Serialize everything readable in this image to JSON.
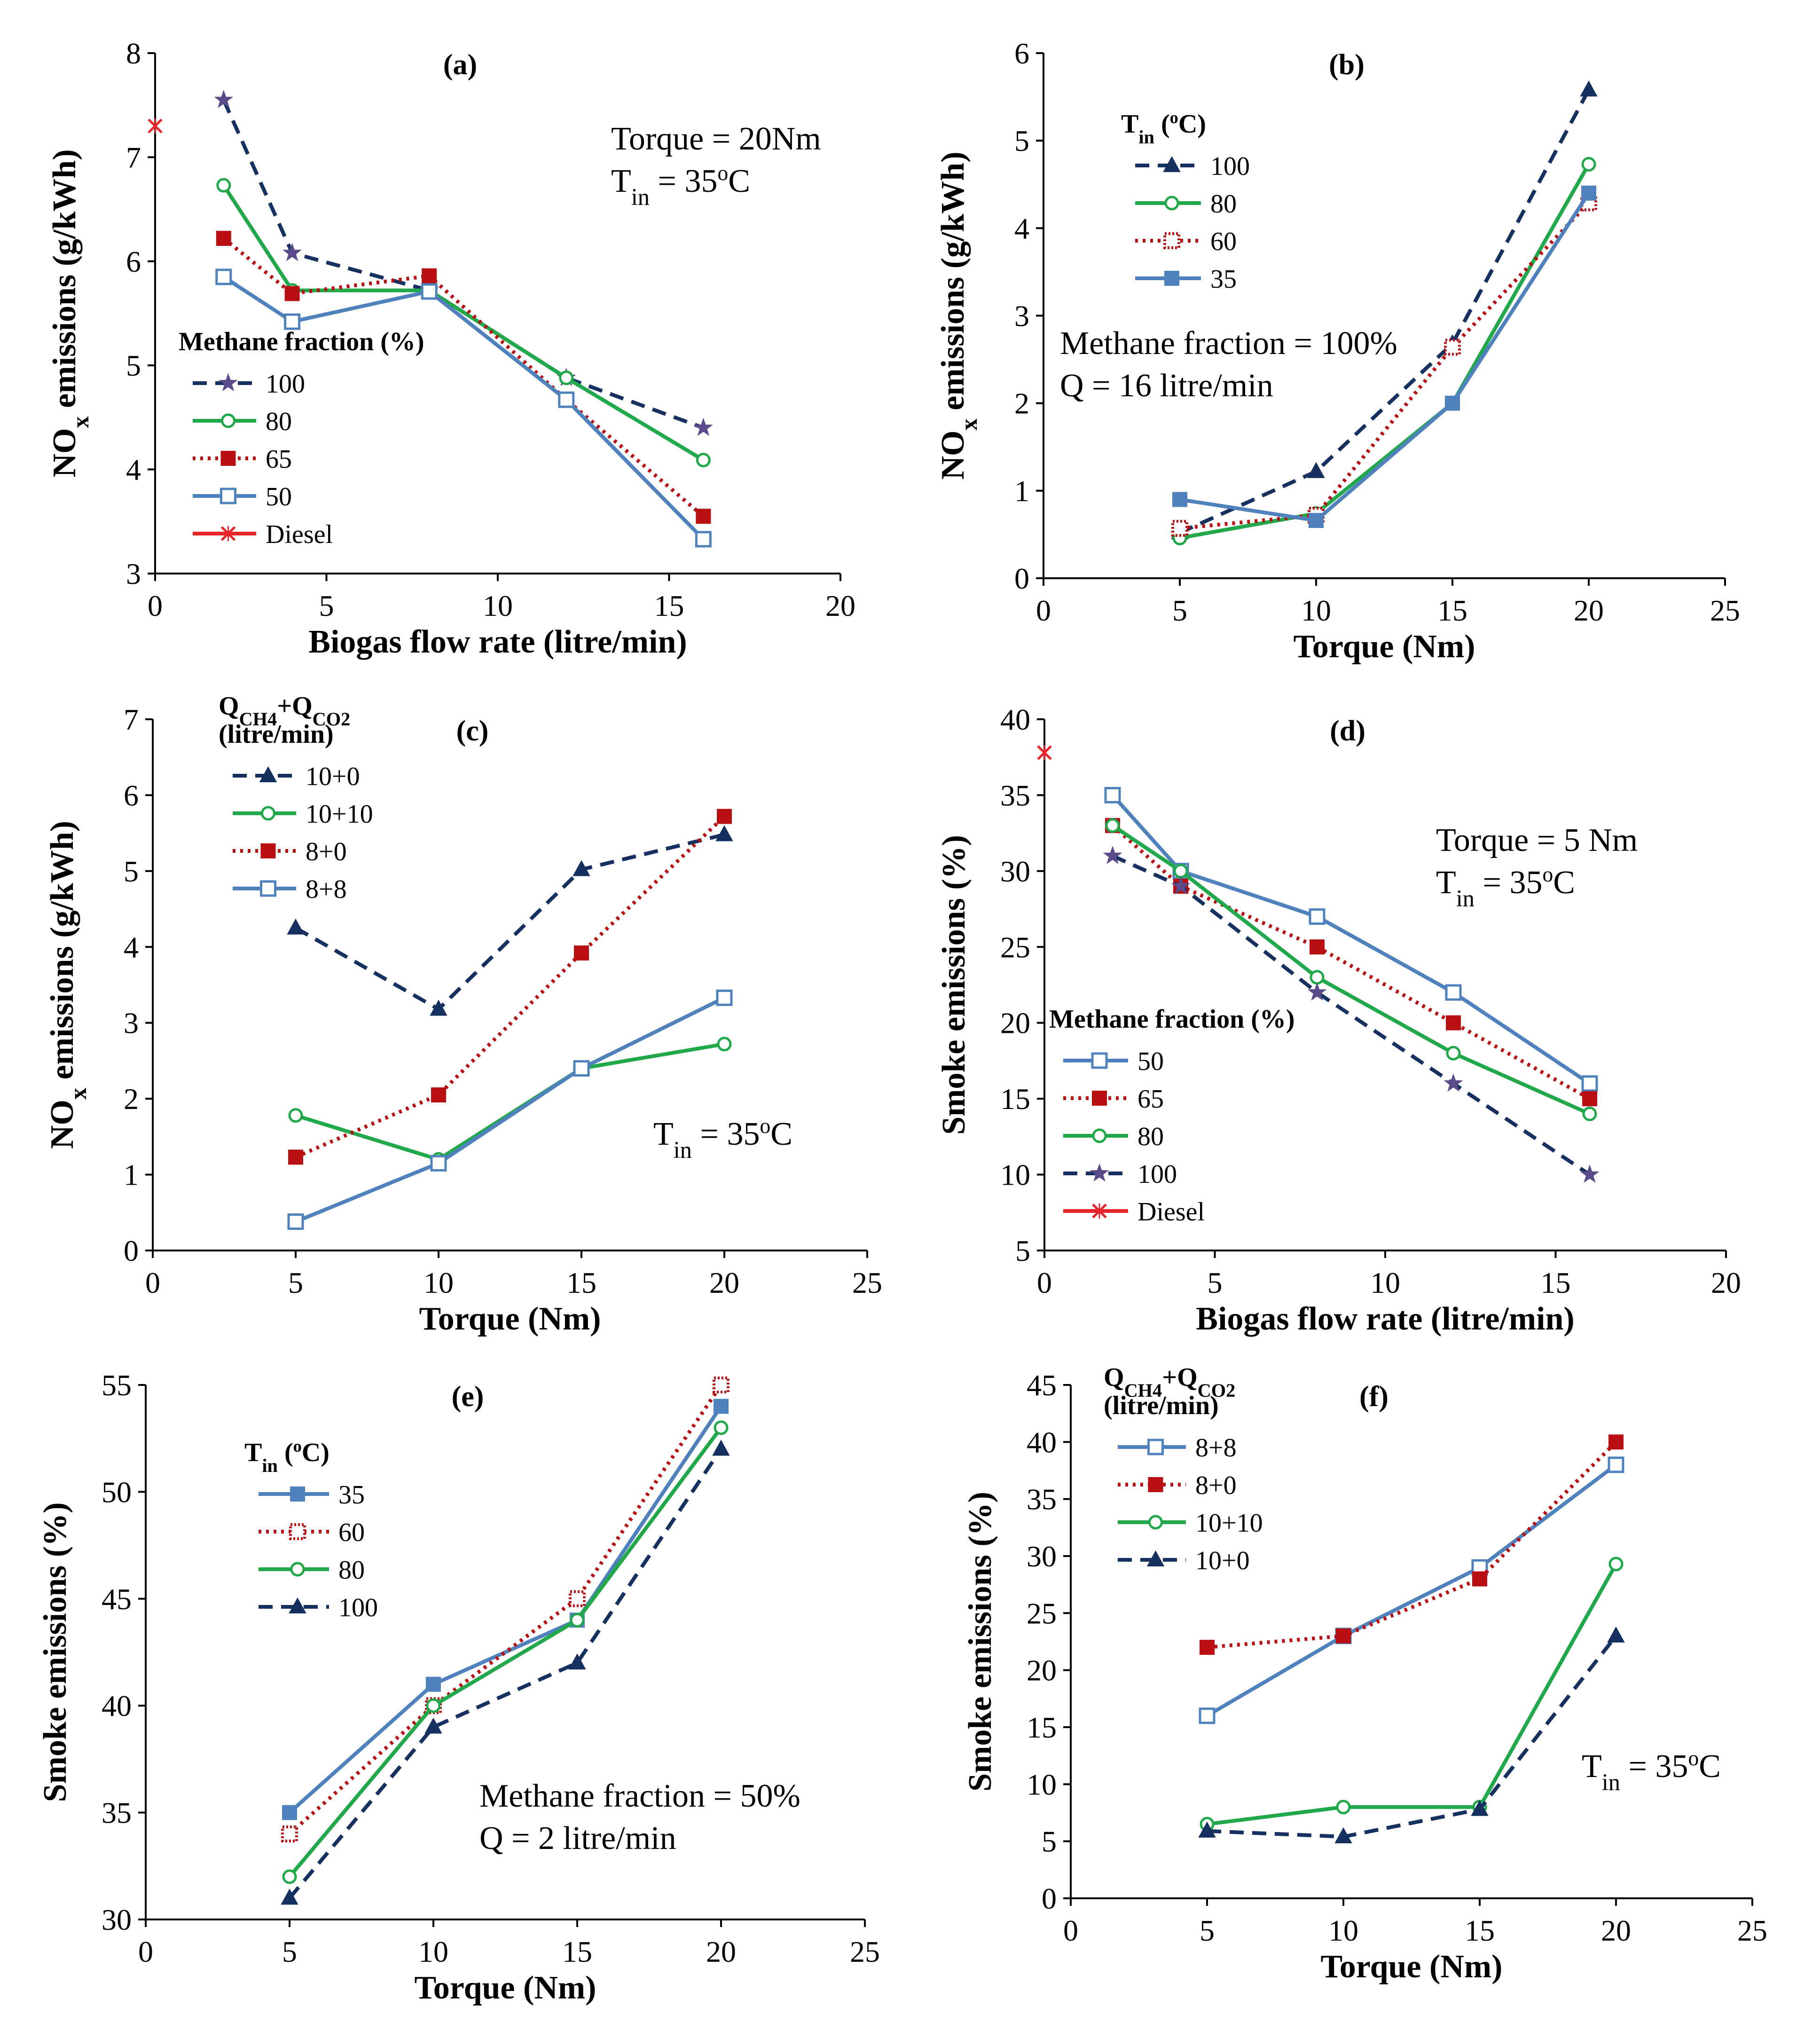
{
  "colors": {
    "navy": "#16305f",
    "green": "#21a84a",
    "red": "#b80f12",
    "blue": "#4f81bd",
    "purple": "#5b4b8a",
    "diesel": "#e8252a"
  },
  "chart_data": [
    {
      "id": "a",
      "type": "line",
      "label": "(a)",
      "xlabel": "Biogas flow rate (litre/min)",
      "ylabel": {
        "base": "NO",
        "sub": "x",
        "rest": " emissions (g/kWh)"
      },
      "xlim": [
        0,
        20
      ],
      "ylim": [
        3,
        8
      ],
      "xticks": [
        0,
        5,
        10,
        15,
        20
      ],
      "yticks": [
        3,
        4,
        5,
        6,
        7,
        8
      ],
      "annotations": [
        {
          "line": 1,
          "parts": [
            {
              "t": "Torque = 20Nm"
            }
          ]
        },
        {
          "line": 2,
          "parts": [
            {
              "t": "T"
            },
            {
              "t": "in",
              "sub": true
            },
            {
              "t": " = 35"
            },
            {
              "t": "o",
              "sup": true
            },
            {
              "t": "C"
            }
          ]
        }
      ],
      "legend_title": {
        "parts": [
          {
            "t": "Methane fraction (%)"
          }
        ]
      },
      "series": [
        {
          "name": "100",
          "style": "dash",
          "color": "navy",
          "marker": "star",
          "x": [
            2,
            4,
            8,
            12,
            16
          ],
          "y": [
            7.55,
            6.08,
            5.72,
            4.88,
            4.4
          ]
        },
        {
          "name": "80",
          "style": "solid",
          "color": "green",
          "marker": "circle",
          "x": [
            2,
            4,
            8,
            12,
            16
          ],
          "y": [
            6.73,
            5.72,
            5.72,
            4.88,
            4.09
          ]
        },
        {
          "name": "65",
          "style": "dot",
          "color": "red",
          "marker": "square-filled",
          "x": [
            2,
            4,
            8,
            12,
            16
          ],
          "y": [
            6.22,
            5.69,
            5.86,
            4.67,
            3.55
          ]
        },
        {
          "name": "50",
          "style": "solid",
          "color": "blue",
          "marker": "square-open",
          "x": [
            2,
            4,
            8,
            12,
            16
          ],
          "y": [
            5.85,
            5.42,
            5.71,
            4.67,
            3.33
          ]
        },
        {
          "name": "Diesel",
          "style": "solid",
          "color": "diesel",
          "marker": "x",
          "x": [
            0
          ],
          "y": [
            7.3
          ]
        }
      ]
    },
    {
      "id": "b",
      "type": "line",
      "label": "(b)",
      "xlabel": "Torque (Nm)",
      "ylabel": {
        "base": "NO",
        "sub": "x",
        "rest": " emissions (g/kWh)"
      },
      "xlim": [
        0,
        25
      ],
      "ylim": [
        0,
        6
      ],
      "xticks": [
        0,
        5,
        10,
        15,
        20,
        25
      ],
      "yticks": [
        0,
        1,
        2,
        3,
        4,
        5,
        6
      ],
      "annotations": [
        {
          "line": 1,
          "parts": [
            {
              "t": "Methane fraction = 100%"
            }
          ]
        },
        {
          "line": 2,
          "parts": [
            {
              "t": "Q = 16 litre/min"
            }
          ]
        }
      ],
      "legend_title": {
        "parts": [
          {
            "t": "T"
          },
          {
            "t": "in",
            "sub": true
          },
          {
            "t": " ("
          },
          {
            "t": "o",
            "sup": true
          },
          {
            "t": "C)"
          }
        ]
      },
      "series": [
        {
          "name": "100",
          "style": "dash",
          "color": "navy",
          "marker": "triangle",
          "x": [
            5,
            10,
            15,
            20
          ],
          "y": [
            0.52,
            1.22,
            2.68,
            5.58
          ]
        },
        {
          "name": "80",
          "style": "solid",
          "color": "green",
          "marker": "circle",
          "x": [
            5,
            10,
            15,
            20
          ],
          "y": [
            0.46,
            0.74,
            2.0,
            4.73
          ]
        },
        {
          "name": "60",
          "style": "dot",
          "color": "red",
          "marker": "square-dotted",
          "x": [
            5,
            10,
            15,
            20
          ],
          "y": [
            0.57,
            0.72,
            2.64,
            4.29
          ]
        },
        {
          "name": "35",
          "style": "solid",
          "color": "blue",
          "marker": "square-filled",
          "x": [
            5,
            10,
            15,
            20
          ],
          "y": [
            0.9,
            0.66,
            2.0,
            4.4
          ]
        }
      ]
    },
    {
      "id": "c",
      "type": "line",
      "label": "(c)",
      "xlabel": "Torque (Nm)",
      "ylabel": {
        "base": "NO",
        "sub": "x",
        "rest": " emissions (g/kWh)"
      },
      "xlim": [
        0,
        25
      ],
      "ylim": [
        0,
        7
      ],
      "xticks": [
        0,
        5,
        10,
        15,
        20,
        25
      ],
      "yticks": [
        0,
        1,
        2,
        3,
        4,
        5,
        6,
        7
      ],
      "annotations": [
        {
          "line": 1,
          "parts": [
            {
              "t": "T"
            },
            {
              "t": "in",
              "sub": true
            },
            {
              "t": " = 35"
            },
            {
              "t": "o",
              "sup": true
            },
            {
              "t": "C"
            }
          ]
        }
      ],
      "legend_title": {
        "parts": [
          {
            "t": "Q"
          },
          {
            "t": "CH4",
            "sub": true
          },
          {
            "t": "+Q"
          },
          {
            "t": "CO2",
            "sub": true
          }
        ],
        "line2": "(litre/min)"
      },
      "series": [
        {
          "name": "10+0",
          "style": "dash",
          "color": "navy",
          "marker": "triangle",
          "x": [
            5,
            10,
            15,
            20
          ],
          "y": [
            4.25,
            3.18,
            5.02,
            5.48
          ]
        },
        {
          "name": "10+10",
          "style": "solid",
          "color": "green",
          "marker": "circle",
          "x": [
            5,
            10,
            15,
            20
          ],
          "y": [
            1.78,
            1.2,
            2.4,
            2.72
          ]
        },
        {
          "name": "8+0",
          "style": "dot",
          "color": "red",
          "marker": "square-filled",
          "x": [
            5,
            10,
            15,
            20
          ],
          "y": [
            1.23,
            2.05,
            3.92,
            5.72
          ]
        },
        {
          "name": "8+8",
          "style": "solid",
          "color": "blue",
          "marker": "square-open",
          "x": [
            5,
            10,
            15,
            20
          ],
          "y": [
            0.38,
            1.15,
            2.4,
            3.33
          ]
        }
      ]
    },
    {
      "id": "d",
      "type": "line",
      "label": "(d)",
      "xlabel": "Biogas flow rate (litre/min)",
      "ylabel": {
        "base": "Smoke emissions (%)"
      },
      "xlim": [
        0,
        20
      ],
      "ylim": [
        5,
        40
      ],
      "xticks": [
        0,
        5,
        10,
        15,
        20
      ],
      "yticks": [
        5,
        10,
        15,
        20,
        25,
        30,
        35,
        40
      ],
      "annotations": [
        {
          "line": 1,
          "parts": [
            {
              "t": "Torque = 5 Nm"
            }
          ]
        },
        {
          "line": 2,
          "parts": [
            {
              "t": "T"
            },
            {
              "t": "in",
              "sub": true
            },
            {
              "t": " = 35"
            },
            {
              "t": "o",
              "sup": true
            },
            {
              "t": "C"
            }
          ]
        }
      ],
      "legend_title": {
        "parts": [
          {
            "t": "Methane fraction (%)"
          }
        ]
      },
      "series": [
        {
          "name": "50",
          "style": "solid",
          "color": "blue",
          "marker": "square-open",
          "x": [
            2,
            4,
            8,
            12,
            16
          ],
          "y": [
            35,
            30,
            27,
            22,
            16
          ]
        },
        {
          "name": "65",
          "style": "dot",
          "color": "red",
          "marker": "square-filled",
          "x": [
            2,
            4,
            8,
            12,
            16
          ],
          "y": [
            33,
            29,
            25,
            20,
            15
          ]
        },
        {
          "name": "80",
          "style": "solid",
          "color": "green",
          "marker": "circle",
          "x": [
            2,
            4,
            8,
            12,
            16
          ],
          "y": [
            33,
            30,
            23,
            18,
            14
          ]
        },
        {
          "name": "100",
          "style": "dash",
          "color": "navy",
          "marker": "star",
          "x": [
            2,
            4,
            8,
            12,
            16
          ],
          "y": [
            31,
            29,
            22,
            16,
            10
          ]
        },
        {
          "name": "Diesel",
          "style": "solid",
          "color": "diesel",
          "marker": "x",
          "x": [
            0
          ],
          "y": [
            37.8
          ]
        }
      ]
    },
    {
      "id": "e",
      "type": "line",
      "label": "(e)",
      "xlabel": "Torque (Nm)",
      "ylabel": {
        "base": "Smoke emissions (%)"
      },
      "xlim": [
        0,
        25
      ],
      "ylim": [
        30,
        55
      ],
      "xticks": [
        0,
        5,
        10,
        15,
        20,
        25
      ],
      "yticks": [
        30,
        35,
        40,
        45,
        50,
        55
      ],
      "annotations": [
        {
          "line": 1,
          "parts": [
            {
              "t": "Methane fraction = 50%"
            }
          ]
        },
        {
          "line": 2,
          "parts": [
            {
              "t": "Q = 2 litre/min"
            }
          ]
        }
      ],
      "legend_title": {
        "parts": [
          {
            "t": "T"
          },
          {
            "t": "in",
            "sub": true
          },
          {
            "t": " ("
          },
          {
            "t": "o",
            "sup": true
          },
          {
            "t": "C)"
          }
        ]
      },
      "series": [
        {
          "name": "35",
          "style": "solid",
          "color": "blue",
          "marker": "square-filled",
          "x": [
            5,
            10,
            15,
            20
          ],
          "y": [
            35,
            41,
            44,
            54
          ]
        },
        {
          "name": "60",
          "style": "dot",
          "color": "red",
          "marker": "square-dotted",
          "x": [
            5,
            10,
            15,
            20
          ],
          "y": [
            34,
            40,
            45,
            55
          ]
        },
        {
          "name": "80",
          "style": "solid",
          "color": "green",
          "marker": "circle",
          "x": [
            5,
            10,
            15,
            20
          ],
          "y": [
            32,
            40,
            44,
            53
          ]
        },
        {
          "name": "100",
          "style": "dash",
          "color": "navy",
          "marker": "triangle",
          "x": [
            5,
            10,
            15,
            20
          ],
          "y": [
            31,
            39,
            42,
            52
          ]
        }
      ]
    },
    {
      "id": "f",
      "type": "line",
      "label": "(f)",
      "xlabel": "Torque (Nm)",
      "ylabel": {
        "base": "Smoke emissions (%)"
      },
      "xlim": [
        0,
        25
      ],
      "ylim": [
        0,
        45
      ],
      "xticks": [
        0,
        5,
        10,
        15,
        20,
        25
      ],
      "yticks": [
        0,
        5,
        10,
        15,
        20,
        25,
        30,
        35,
        40,
        45
      ],
      "annotations": [
        {
          "line": 1,
          "parts": [
            {
              "t": "T"
            },
            {
              "t": "in",
              "sub": true
            },
            {
              "t": " = 35"
            },
            {
              "t": "o",
              "sup": true
            },
            {
              "t": "C"
            }
          ]
        }
      ],
      "legend_title": {
        "parts": [
          {
            "t": "Q"
          },
          {
            "t": "CH4",
            "sub": true
          },
          {
            "t": "+Q"
          },
          {
            "t": "CO2",
            "sub": true
          }
        ],
        "line2": "(litre/min)"
      },
      "series": [
        {
          "name": "8+8",
          "style": "solid",
          "color": "blue",
          "marker": "square-open",
          "x": [
            5,
            10,
            15,
            20
          ],
          "y": [
            16,
            23,
            29,
            38
          ]
        },
        {
          "name": "8+0",
          "style": "dot",
          "color": "red",
          "marker": "square-filled",
          "x": [
            5,
            10,
            15,
            20
          ],
          "y": [
            22,
            23,
            28,
            40
          ]
        },
        {
          "name": "10+10",
          "style": "solid",
          "color": "green",
          "marker": "circle",
          "x": [
            5,
            10,
            15,
            20
          ],
          "y": [
            6.5,
            8,
            8,
            29.3
          ]
        },
        {
          "name": "10+0",
          "style": "dash",
          "color": "navy",
          "marker": "triangle",
          "x": [
            5,
            10,
            15,
            20
          ],
          "y": [
            5.9,
            5.4,
            7.8,
            23
          ]
        }
      ]
    }
  ]
}
